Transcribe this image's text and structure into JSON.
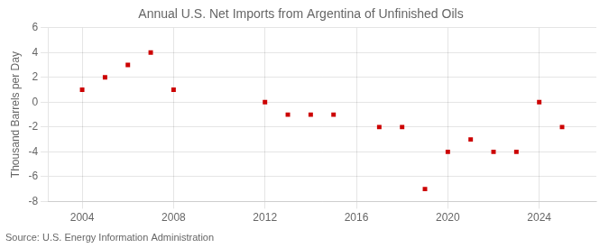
{
  "chart_data": {
    "type": "scatter",
    "title": "Annual U.S. Net Imports from Argentina of Unfinished Oils",
    "ylabel": "Thousand Barrels per Day",
    "annotations": [
      "Source: U.S. Energy Information Administration"
    ],
    "x": [
      2004,
      2005,
      2006,
      2007,
      2008,
      2012,
      2013,
      2014,
      2015,
      2017,
      2018,
      2019,
      2020,
      2021,
      2022,
      2023,
      2024,
      2025
    ],
    "values": [
      1,
      2,
      3,
      4,
      1,
      0,
      -1,
      -1,
      -1,
      -2,
      -2,
      -7,
      -4,
      -3,
      -4,
      -4,
      0,
      -2
    ],
    "color": "#cc0000",
    "marker": "square",
    "xlim": [
      2002.5,
      2026.5
    ],
    "xticks": [
      2004,
      2008,
      2012,
      2016,
      2020,
      2024
    ],
    "ylim": [
      -8,
      6
    ],
    "yticks": [
      -8,
      -6,
      -4,
      -2,
      0,
      2,
      4,
      6
    ],
    "grid": true
  }
}
